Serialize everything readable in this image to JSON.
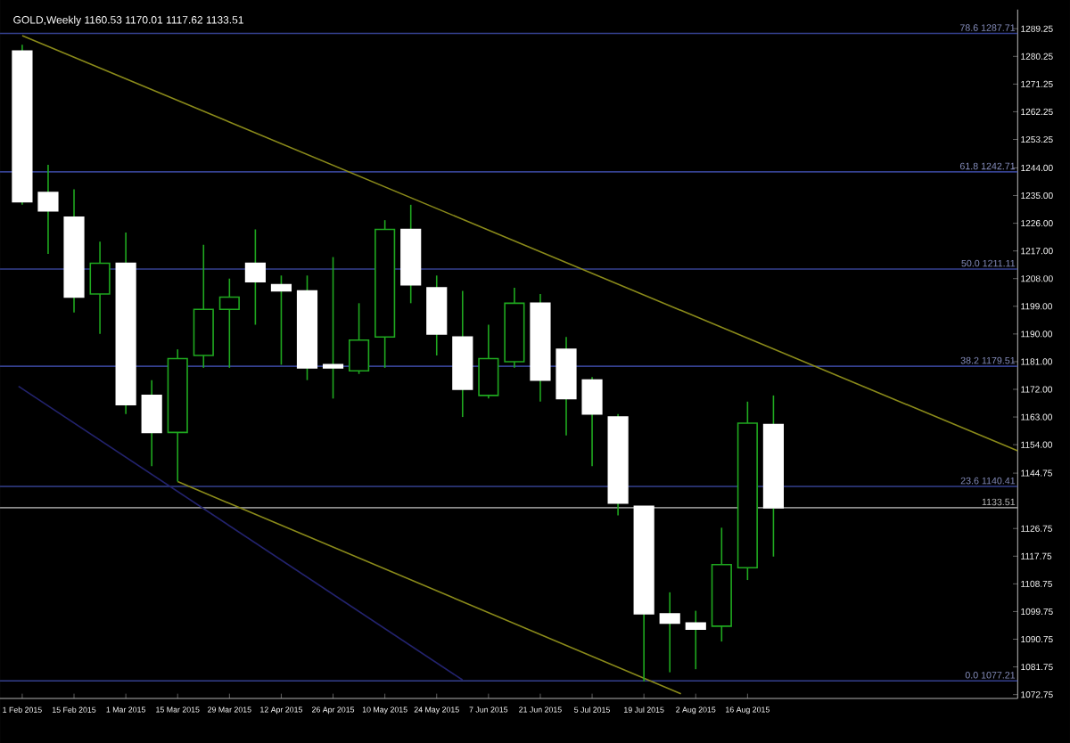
{
  "chart_data": {
    "type": "candlestick",
    "title": "GOLD,Weekly  1160.53 1170.01 1117.62 1133.51",
    "x": [
      "2015-02-01",
      "2015-02-08",
      "2015-02-15",
      "2015-02-22",
      "2015-03-01",
      "2015-03-08",
      "2015-03-15",
      "2015-03-22",
      "2015-03-29",
      "2015-04-05",
      "2015-04-12",
      "2015-04-19",
      "2015-04-26",
      "2015-05-03",
      "2015-05-10",
      "2015-05-17",
      "2015-05-24",
      "2015-05-31",
      "2015-06-07",
      "2015-06-14",
      "2015-06-21",
      "2015-06-28",
      "2015-07-05",
      "2015-07-12",
      "2015-07-19",
      "2015-07-26",
      "2015-08-02",
      "2015-08-09",
      "2015-08-16",
      "2015-08-23"
    ],
    "ohlc": [
      [
        1282,
        1284,
        1232,
        1233
      ],
      [
        1236,
        1245,
        1216,
        1230
      ],
      [
        1228,
        1237,
        1197,
        1202
      ],
      [
        1203,
        1220,
        1190,
        1213
      ],
      [
        1213,
        1223,
        1164,
        1167
      ],
      [
        1170,
        1175,
        1147,
        1158
      ],
      [
        1158,
        1185,
        1142,
        1182
      ],
      [
        1183,
        1219,
        1179,
        1198
      ],
      [
        1198,
        1208,
        1179,
        1202
      ],
      [
        1213,
        1224,
        1193,
        1207
      ],
      [
        1206,
        1209,
        1180,
        1204
      ],
      [
        1204,
        1209,
        1175,
        1179
      ],
      [
        1180,
        1215,
        1169,
        1179
      ],
      [
        1178,
        1200,
        1177,
        1188
      ],
      [
        1189,
        1227,
        1179,
        1224
      ],
      [
        1224,
        1232,
        1200,
        1206
      ],
      [
        1205,
        1209,
        1183,
        1190
      ],
      [
        1189,
        1204,
        1163,
        1172
      ],
      [
        1170,
        1193,
        1169,
        1182
      ],
      [
        1181,
        1205,
        1179,
        1200
      ],
      [
        1200,
        1203,
        1168,
        1175
      ],
      [
        1185,
        1189,
        1157,
        1169
      ],
      [
        1175,
        1176,
        1147,
        1164
      ],
      [
        1163,
        1164,
        1131,
        1135
      ],
      [
        1134,
        1134,
        1077,
        1099
      ],
      [
        1099,
        1106,
        1080,
        1096
      ],
      [
        1096,
        1100,
        1081,
        1094
      ],
      [
        1095,
        1127,
        1090,
        1115
      ],
      [
        1114,
        1168,
        1110,
        1161
      ],
      [
        1160.53,
        1170.01,
        1117.62,
        1133.51
      ]
    ],
    "colors": [
      "#ffffff",
      "#ffffff",
      "#ffffff",
      "#1fa81f",
      "#ffffff",
      "#ffffff",
      "#1fa81f",
      "#1fa81f",
      "#1fa81f",
      "#ffffff",
      "#ffffff",
      "#ffffff",
      "#ffffff",
      "#1fa81f",
      "#1fa81f",
      "#ffffff",
      "#ffffff",
      "#ffffff",
      "#1fa81f",
      "#1fa81f",
      "#ffffff",
      "#ffffff",
      "#ffffff",
      "#ffffff",
      "#ffffff",
      "#ffffff",
      "#ffffff",
      "#1fa81f",
      "#1fa81f",
      "#ffffff"
    ],
    "series": [
      {
        "type": "line",
        "x": [
          "2015-02-01",
          "2015-10-28"
        ],
        "values": [
          1287,
          1152
        ],
        "color": "#8a8a1a"
      },
      {
        "type": "line",
        "x": [
          "2015-03-15",
          "2015-07-29"
        ],
        "values": [
          1142,
          1073
        ],
        "color": "#8a8a1a"
      },
      {
        "type": "line",
        "x": [
          "2015-01-31",
          "2015-05-31"
        ],
        "values": [
          1173,
          1077.5
        ],
        "color": "#23236e"
      }
    ],
    "xlim": [
      "2015-01-26",
      "2015-10-28"
    ],
    "xticks": [
      {
        "value": "2015-02-01",
        "label": "1 Feb 2015"
      },
      {
        "value": "2015-02-15",
        "label": "15 Feb 2015"
      },
      {
        "value": "2015-03-01",
        "label": "1 Mar 2015"
      },
      {
        "value": "2015-03-15",
        "label": "15 Mar 2015"
      },
      {
        "value": "2015-03-29",
        "label": "29 Mar 2015"
      },
      {
        "value": "2015-04-12",
        "label": "12 Apr 2015"
      },
      {
        "value": "2015-04-26",
        "label": "26 Apr 2015"
      },
      {
        "value": "2015-05-10",
        "label": "10 May 2015"
      },
      {
        "value": "2015-05-24",
        "label": "24 May 2015"
      },
      {
        "value": "2015-06-07",
        "label": "7 Jun 2015"
      },
      {
        "value": "2015-06-21",
        "label": "21 Jun 2015"
      },
      {
        "value": "2015-07-05",
        "label": "5 Jul 2015"
      },
      {
        "value": "2015-07-19",
        "label": "19 Jul 2015"
      },
      {
        "value": "2015-08-02",
        "label": "2 Aug 2015"
      },
      {
        "value": "2015-08-16",
        "label": "16 Aug 2015"
      }
    ],
    "ylim": [
      1071.5,
      1295.5
    ],
    "yticks": [
      1072.75,
      1081.75,
      1090.75,
      1099.75,
      1108.75,
      1117.75,
      1126.75,
      1144.75,
      {
        "value": 1154,
        "label": "1154.00"
      },
      {
        "value": 1163,
        "label": "1163.00"
      },
      {
        "value": 1172,
        "label": "1172.00"
      },
      {
        "value": 1181,
        "label": "1181.00"
      },
      {
        "value": 1190,
        "label": "1190.00"
      },
      {
        "value": 1199,
        "label": "1199.00"
      },
      {
        "value": 1208,
        "label": "1208.00"
      },
      {
        "value": 1217,
        "label": "1217.00"
      },
      {
        "value": 1226,
        "label": "1226.00"
      },
      {
        "value": 1235,
        "label": "1235.00"
      },
      {
        "value": 1244,
        "label": "1244.00"
      },
      1253.25,
      1262.25,
      1271.25,
      1280.25,
      1289.25
    ],
    "ref_lines": [
      {
        "axis": "y",
        "value": 1287.71,
        "label": "78.6  1287.71",
        "color": "#34408f"
      },
      {
        "axis": "y",
        "value": 1242.71,
        "label": "61.8  1242.71",
        "color": "#34408f"
      },
      {
        "axis": "y",
        "value": 1211.11,
        "label": "50.0  1211.11",
        "color": "#34408f"
      },
      {
        "axis": "y",
        "value": 1179.51,
        "label": "38.2  1179.51",
        "color": "#34408f"
      },
      {
        "axis": "y",
        "value": 1140.41,
        "label": "23.6  1140.41",
        "color": "#34408f"
      },
      {
        "axis": "y",
        "value": 1077.21,
        "label": "0.0  1077.21",
        "color": "#34408f"
      },
      {
        "axis": "y",
        "value": 1133.51,
        "label": "1133.51",
        "color": "#8c8c8c"
      }
    ]
  }
}
